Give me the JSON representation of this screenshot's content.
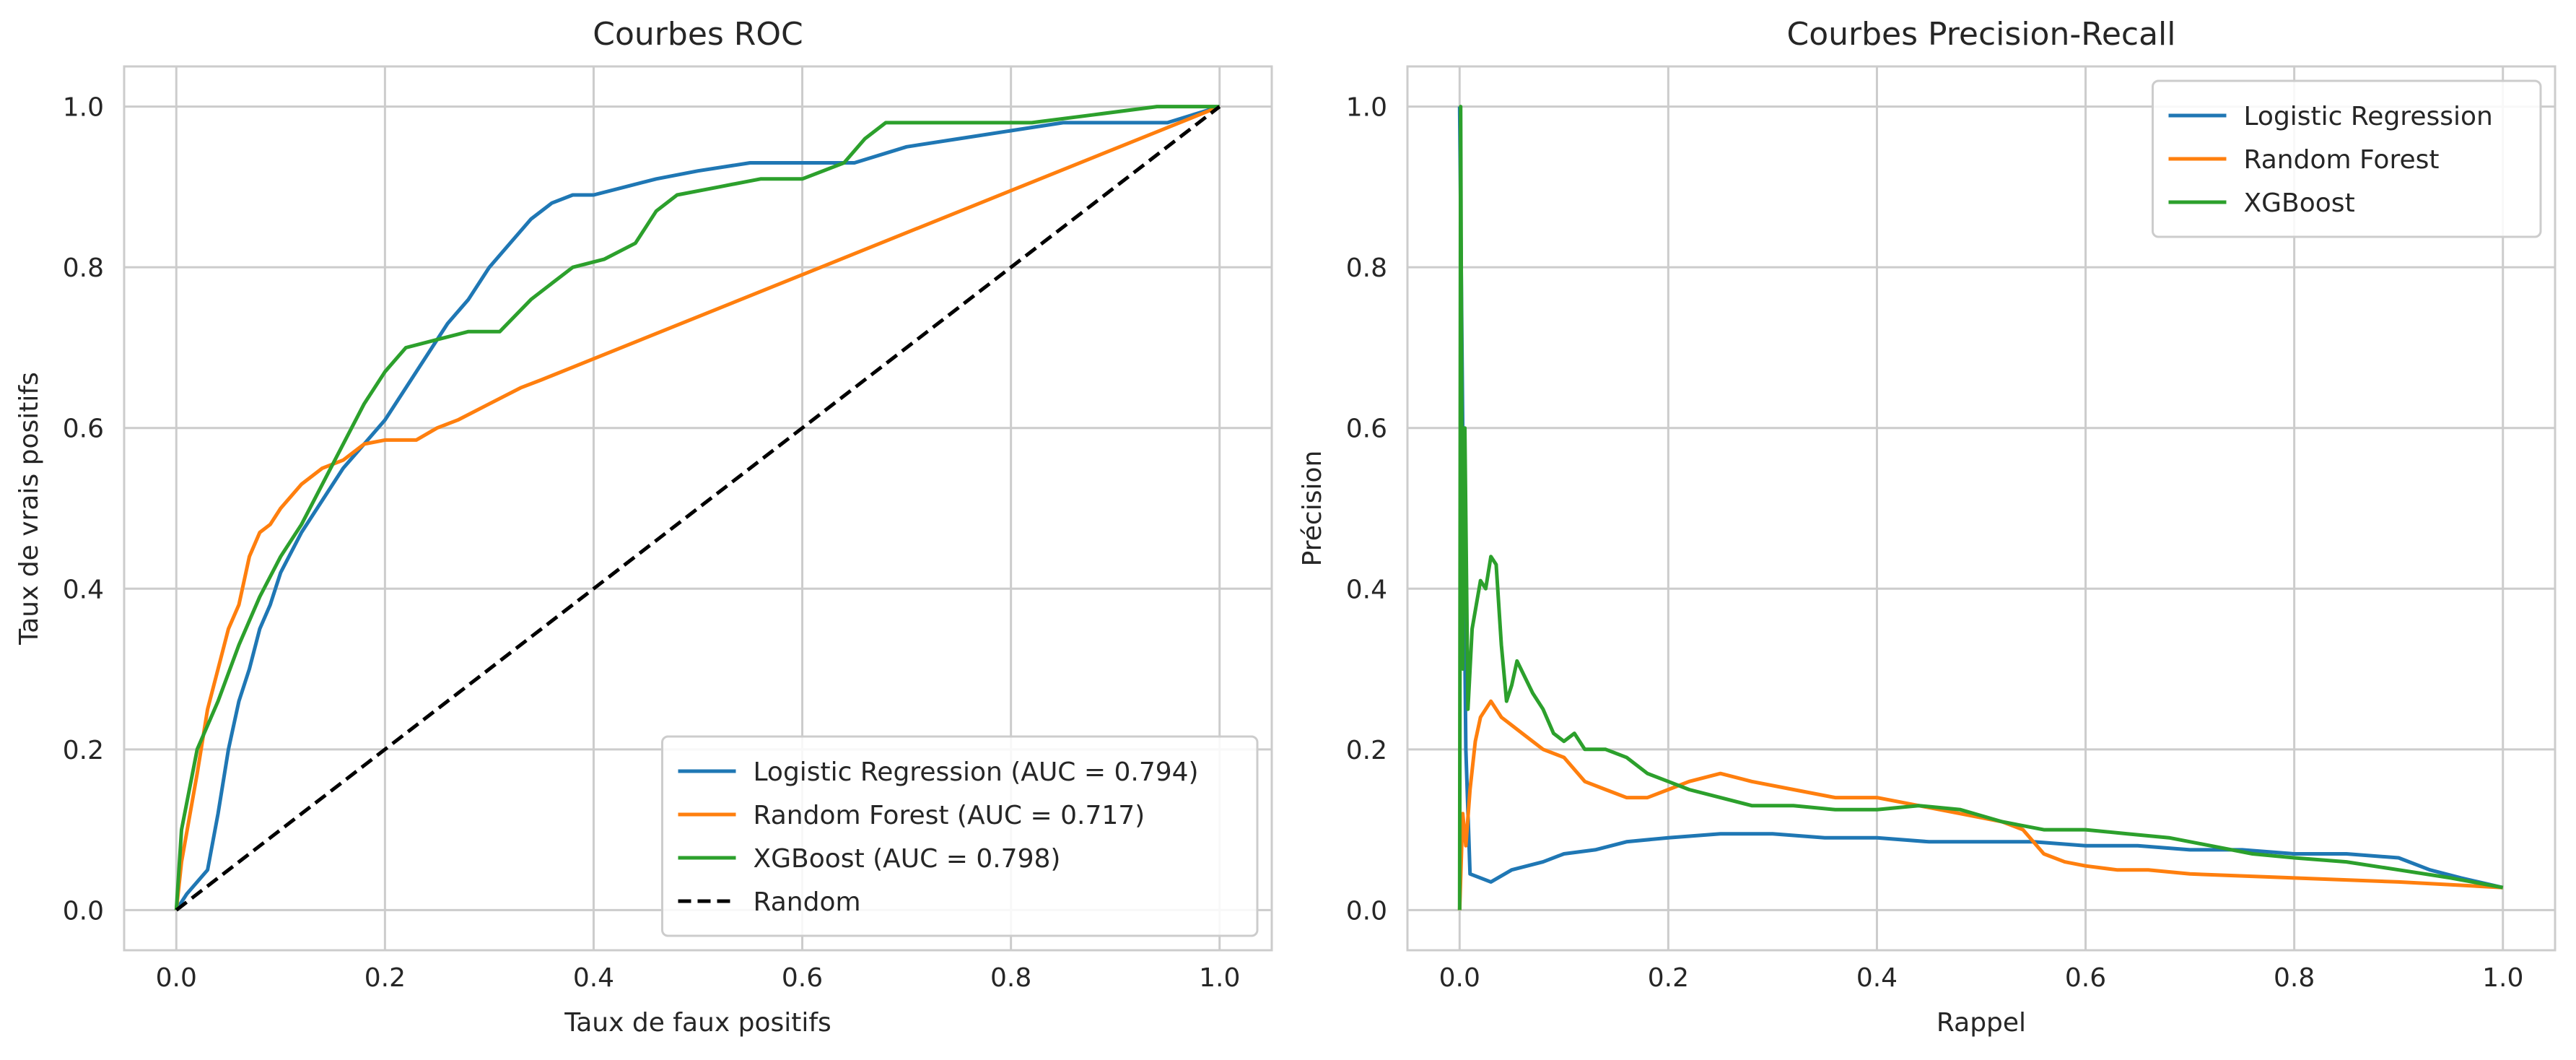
{
  "chart_data": [
    {
      "type": "line",
      "title": "Courbes ROC",
      "xlabel": "Taux de faux positifs",
      "ylabel": "Taux de vrais positifs",
      "xlim": [
        -0.05,
        1.05
      ],
      "ylim": [
        -0.05,
        1.05
      ],
      "xticks": [
        "0.0",
        "0.2",
        "0.4",
        "0.6",
        "0.8",
        "1.0"
      ],
      "yticks": [
        "0.0",
        "0.2",
        "0.4",
        "0.6",
        "0.8",
        "1.0"
      ],
      "grid": true,
      "legend_position": "lower-right",
      "series": [
        {
          "name": "Logistic Regression (AUC = 0.794)",
          "color": "#1f77b4",
          "dash": "solid",
          "x": [
            0.0,
            0.01,
            0.03,
            0.04,
            0.05,
            0.06,
            0.07,
            0.08,
            0.09,
            0.1,
            0.12,
            0.14,
            0.16,
            0.18,
            0.2,
            0.22,
            0.24,
            0.26,
            0.28,
            0.3,
            0.32,
            0.34,
            0.36,
            0.38,
            0.4,
            0.43,
            0.46,
            0.5,
            0.55,
            0.6,
            0.65,
            0.7,
            0.75,
            0.8,
            0.85,
            0.9,
            0.95,
            1.0
          ],
          "y": [
            0.0,
            0.02,
            0.05,
            0.12,
            0.2,
            0.26,
            0.3,
            0.35,
            0.38,
            0.42,
            0.47,
            0.51,
            0.55,
            0.58,
            0.61,
            0.65,
            0.69,
            0.73,
            0.76,
            0.8,
            0.83,
            0.86,
            0.88,
            0.89,
            0.89,
            0.9,
            0.91,
            0.92,
            0.93,
            0.93,
            0.93,
            0.95,
            0.96,
            0.97,
            0.98,
            0.98,
            0.98,
            1.0
          ]
        },
        {
          "name": "Random Forest (AUC = 0.717)",
          "color": "#ff7f0e",
          "dash": "solid",
          "x": [
            0.0,
            0.005,
            0.02,
            0.03,
            0.04,
            0.05,
            0.06,
            0.07,
            0.08,
            0.09,
            0.1,
            0.12,
            0.14,
            0.16,
            0.18,
            0.2,
            0.23,
            0.25,
            0.27,
            0.3,
            0.33,
            0.35,
            1.0
          ],
          "y": [
            0.0,
            0.06,
            0.17,
            0.25,
            0.3,
            0.35,
            0.38,
            0.44,
            0.47,
            0.48,
            0.5,
            0.53,
            0.55,
            0.56,
            0.58,
            0.585,
            0.585,
            0.6,
            0.61,
            0.63,
            0.65,
            0.66,
            1.0
          ]
        },
        {
          "name": "XGBoost (AUC = 0.798)",
          "color": "#2ca02c",
          "dash": "solid",
          "x": [
            0.0,
            0.005,
            0.02,
            0.04,
            0.06,
            0.08,
            0.1,
            0.12,
            0.14,
            0.16,
            0.18,
            0.2,
            0.22,
            0.25,
            0.28,
            0.31,
            0.34,
            0.36,
            0.38,
            0.41,
            0.44,
            0.46,
            0.48,
            0.52,
            0.56,
            0.6,
            0.64,
            0.66,
            0.68,
            0.75,
            0.82,
            0.88,
            0.94,
            1.0
          ],
          "y": [
            0.0,
            0.1,
            0.2,
            0.26,
            0.33,
            0.39,
            0.44,
            0.48,
            0.53,
            0.58,
            0.63,
            0.67,
            0.7,
            0.71,
            0.72,
            0.72,
            0.76,
            0.78,
            0.8,
            0.81,
            0.83,
            0.87,
            0.89,
            0.9,
            0.91,
            0.91,
            0.93,
            0.96,
            0.98,
            0.98,
            0.98,
            0.99,
            1.0,
            1.0
          ]
        },
        {
          "name": "Random",
          "color": "#000000",
          "dash": "dashed",
          "x": [
            0.0,
            1.0
          ],
          "y": [
            0.0,
            1.0
          ]
        }
      ]
    },
    {
      "type": "line",
      "title": "Courbes Precision-Recall",
      "xlabel": "Rappel",
      "ylabel": "Précision",
      "xlim": [
        -0.05,
        1.05
      ],
      "ylim": [
        -0.05,
        1.05
      ],
      "xticks": [
        "0.0",
        "0.2",
        "0.4",
        "0.6",
        "0.8",
        "1.0"
      ],
      "yticks": [
        "0.0",
        "0.2",
        "0.4",
        "0.6",
        "0.8",
        "1.0"
      ],
      "grid": true,
      "legend_position": "upper-right",
      "series": [
        {
          "name": "Logistic Regression",
          "color": "#1f77b4",
          "dash": "solid",
          "x": [
            0.0,
            0.003,
            0.006,
            0.01,
            0.03,
            0.05,
            0.08,
            0.1,
            0.13,
            0.16,
            0.2,
            0.25,
            0.3,
            0.35,
            0.4,
            0.45,
            0.5,
            0.55,
            0.6,
            0.65,
            0.7,
            0.75,
            0.8,
            0.85,
            0.9,
            0.93,
            0.96,
            1.0
          ],
          "y": [
            1.0,
            0.6,
            0.2,
            0.045,
            0.035,
            0.05,
            0.06,
            0.07,
            0.075,
            0.085,
            0.09,
            0.095,
            0.095,
            0.09,
            0.09,
            0.085,
            0.085,
            0.085,
            0.08,
            0.08,
            0.075,
            0.075,
            0.07,
            0.07,
            0.065,
            0.05,
            0.04,
            0.028
          ]
        },
        {
          "name": "Random Forest",
          "color": "#ff7f0e",
          "dash": "solid",
          "x": [
            0.0,
            0.003,
            0.006,
            0.01,
            0.015,
            0.02,
            0.025,
            0.03,
            0.04,
            0.05,
            0.06,
            0.08,
            0.1,
            0.12,
            0.14,
            0.16,
            0.18,
            0.2,
            0.22,
            0.25,
            0.28,
            0.32,
            0.36,
            0.4,
            0.44,
            0.48,
            0.52,
            0.54,
            0.56,
            0.58,
            0.6,
            0.63,
            0.66,
            0.7,
            0.8,
            0.9,
            1.0
          ],
          "y": [
            0.0,
            0.12,
            0.08,
            0.15,
            0.21,
            0.24,
            0.25,
            0.26,
            0.24,
            0.23,
            0.22,
            0.2,
            0.19,
            0.16,
            0.15,
            0.14,
            0.14,
            0.15,
            0.16,
            0.17,
            0.16,
            0.15,
            0.14,
            0.14,
            0.13,
            0.12,
            0.11,
            0.1,
            0.07,
            0.06,
            0.055,
            0.05,
            0.05,
            0.045,
            0.04,
            0.035,
            0.028
          ]
        },
        {
          "name": "XGBoost",
          "color": "#2ca02c",
          "dash": "solid",
          "x": [
            0.0,
            0.001,
            0.003,
            0.005,
            0.008,
            0.012,
            0.016,
            0.02,
            0.025,
            0.03,
            0.035,
            0.04,
            0.045,
            0.05,
            0.055,
            0.07,
            0.08,
            0.09,
            0.1,
            0.11,
            0.12,
            0.14,
            0.16,
            0.18,
            0.2,
            0.22,
            0.25,
            0.28,
            0.32,
            0.36,
            0.4,
            0.44,
            0.48,
            0.52,
            0.56,
            0.6,
            0.64,
            0.68,
            0.72,
            0.76,
            0.8,
            0.85,
            0.9,
            0.95,
            1.0
          ],
          "y": [
            0.0,
            1.0,
            0.3,
            0.6,
            0.25,
            0.35,
            0.38,
            0.41,
            0.4,
            0.44,
            0.43,
            0.33,
            0.26,
            0.28,
            0.31,
            0.27,
            0.25,
            0.22,
            0.21,
            0.22,
            0.2,
            0.2,
            0.19,
            0.17,
            0.16,
            0.15,
            0.14,
            0.13,
            0.13,
            0.125,
            0.125,
            0.13,
            0.125,
            0.11,
            0.1,
            0.1,
            0.095,
            0.09,
            0.08,
            0.07,
            0.065,
            0.06,
            0.05,
            0.04,
            0.028
          ]
        }
      ]
    }
  ]
}
